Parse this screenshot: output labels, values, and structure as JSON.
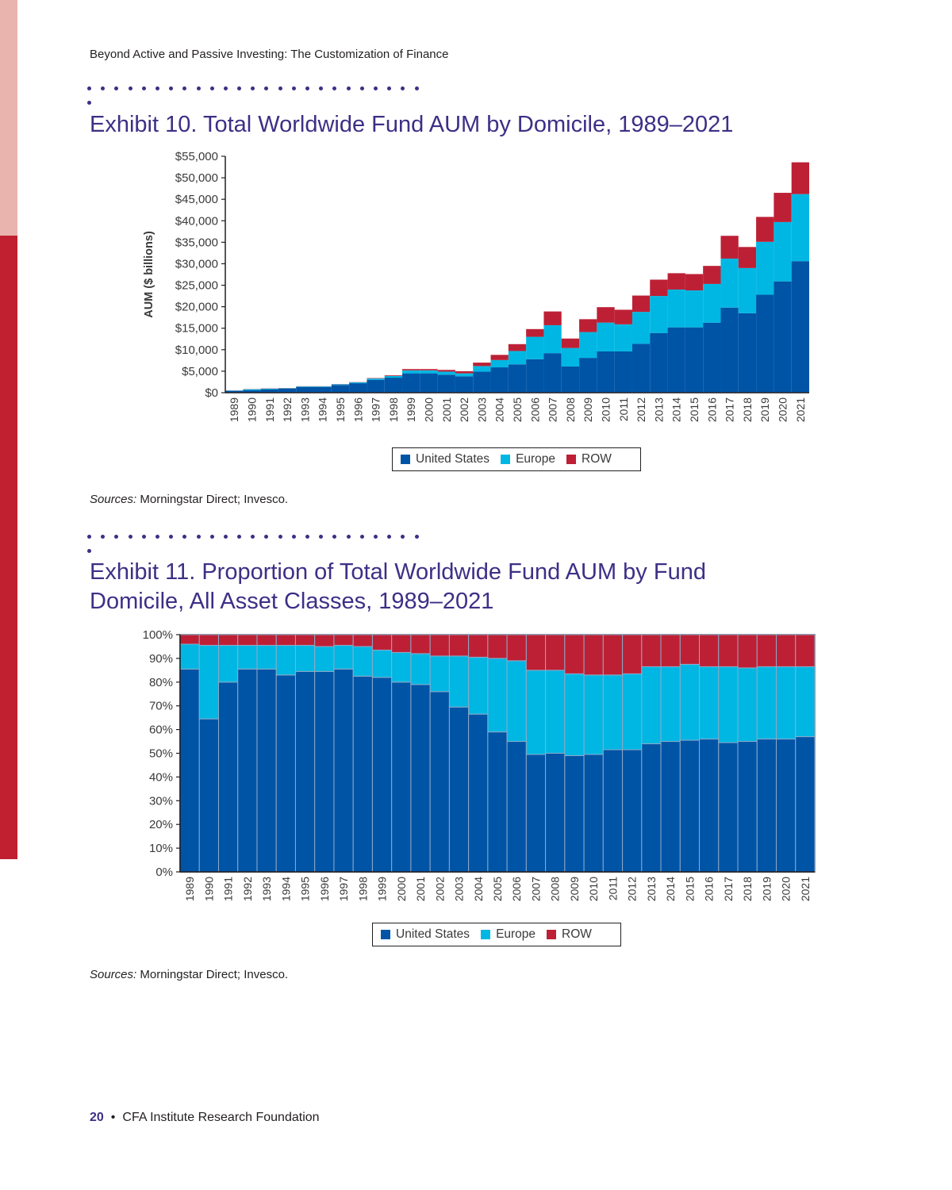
{
  "page": {
    "running_head": "Beyond Active and Passive Investing: The Customization of Finance",
    "footer_page_number": "20",
    "footer_bullet": "•",
    "footer_text": "CFA Institute Research Foundation"
  },
  "colors": {
    "us": "#0054a6",
    "europe": "#00b7e3",
    "row": "#bd2035",
    "title": "#3d2f86",
    "side_band_light": "#e8b4ad",
    "side_band_dark": "#c0202f"
  },
  "chart_data": [
    {
      "type": "bar",
      "stacked": true,
      "exhibit_title": "Exhibit 10. Total Worldwide Fund AUM by Domicile, 1989–2021",
      "ylabel": "AUM ($ billions)",
      "ylim": [
        0,
        55000
      ],
      "yticks": [
        "$55,000",
        "$50,000",
        "$45,000",
        "$40,000",
        "$35,000",
        "$30,000",
        "$25,000",
        "$20,000",
        "$15,000",
        "$10,000",
        "$5,000",
        "$0"
      ],
      "grid": false,
      "legend_position": "bottom",
      "categories": [
        "1989",
        "1990",
        "1991",
        "1992",
        "1993",
        "1994",
        "1995",
        "1996",
        "1997",
        "1998",
        "1999",
        "2000",
        "2001",
        "2002",
        "2003",
        "2004",
        "2005",
        "2006",
        "2007",
        "2008",
        "2009",
        "2010",
        "2011",
        "2012",
        "2013",
        "2014",
        "2015",
        "2016",
        "2017",
        "2018",
        "2019",
        "2020",
        "2021"
      ],
      "series": [
        {
          "name": "United States",
          "values": [
            450,
            550,
            800,
            950,
            1300,
            1300,
            1800,
            2200,
            3000,
            3500,
            4500,
            4500,
            4200,
            3800,
            4900,
            5900,
            6600,
            7800,
            9200,
            6100,
            8100,
            9600,
            9600,
            11400,
            13900,
            15200,
            15200,
            16300,
            19800,
            18500,
            22800,
            25900,
            30600
          ]
        },
        {
          "name": "Europe",
          "values": [
            50,
            250,
            150,
            100,
            150,
            150,
            150,
            200,
            300,
            400,
            700,
            700,
            700,
            700,
            1300,
            1700,
            3100,
            5200,
            6500,
            4300,
            6000,
            6700,
            6300,
            7400,
            8600,
            8800,
            8600,
            9000,
            11400,
            10500,
            12300,
            13800,
            15600
          ]
        },
        {
          "name": "ROW",
          "values": [
            20,
            50,
            50,
            50,
            50,
            50,
            50,
            50,
            100,
            150,
            300,
            300,
            400,
            500,
            800,
            1200,
            1600,
            1800,
            3200,
            2200,
            3000,
            3600,
            3400,
            3800,
            3800,
            3800,
            3800,
            4200,
            5300,
            4900,
            5800,
            6800,
            7400
          ]
        }
      ],
      "legend": [
        "United States",
        "Europe",
        "ROW"
      ],
      "sources_label": "Sources:",
      "sources_text": " Morningstar Direct; Invesco."
    },
    {
      "type": "bar",
      "stacked": true,
      "exhibit_title_line1": "Exhibit 11. Proportion of Total Worldwide Fund AUM by Fund",
      "exhibit_title_line2": "Domicile, All Asset Classes, 1989–2021",
      "ylim": [
        0,
        100
      ],
      "yticks": [
        "100%",
        "90%",
        "80%",
        "70%",
        "60%",
        "50%",
        "40%",
        "30%",
        "20%",
        "10%",
        "0%"
      ],
      "grid": false,
      "legend_position": "bottom",
      "categories": [
        "1989",
        "1990",
        "1991",
        "1992",
        "1993",
        "1994",
        "1995",
        "1996",
        "1997",
        "1998",
        "1999",
        "2000",
        "2001",
        "2002",
        "2003",
        "2004",
        "2005",
        "2006",
        "2007",
        "2008",
        "2009",
        "2010",
        "2011",
        "2012",
        "2013",
        "2014",
        "2015",
        "2016",
        "2017",
        "2018",
        "2019",
        "2020",
        "2021"
      ],
      "series": [
        {
          "name": "United States",
          "values": [
            85.5,
            64.5,
            80,
            85.5,
            85.5,
            83,
            84.5,
            84.5,
            85.5,
            82.5,
            82,
            80,
            79,
            76,
            69.5,
            66.5,
            59,
            55,
            49.5,
            50,
            49,
            49.5,
            51.5,
            51.5,
            54,
            55,
            55.5,
            56,
            54.5,
            55,
            56,
            56,
            57
          ]
        },
        {
          "name": "Europe",
          "values": [
            10.5,
            31,
            15.5,
            10,
            10,
            12.5,
            11,
            10.5,
            10,
            12.5,
            11.5,
            12.5,
            13,
            15,
            21.5,
            24,
            31,
            34,
            35.5,
            35,
            34.5,
            33.5,
            31.5,
            32,
            32.5,
            31.5,
            32,
            30.5,
            32,
            31,
            30.5,
            30.5,
            29.5
          ]
        },
        {
          "name": "ROW",
          "values": [
            4,
            4.5,
            4.5,
            4.5,
            4.5,
            4.5,
            4.5,
            5,
            4.5,
            5,
            6.5,
            7.5,
            8,
            9,
            9,
            9.5,
            10,
            11,
            15,
            15,
            16.5,
            17,
            17,
            16.5,
            13.5,
            13.5,
            12.5,
            13.5,
            13.5,
            14,
            13.5,
            13.5,
            13.5
          ]
        }
      ],
      "legend": [
        "United States",
        "Europe",
        "ROW"
      ],
      "sources_label": "Sources:",
      "sources_text": " Morningstar Direct; Invesco."
    }
  ]
}
